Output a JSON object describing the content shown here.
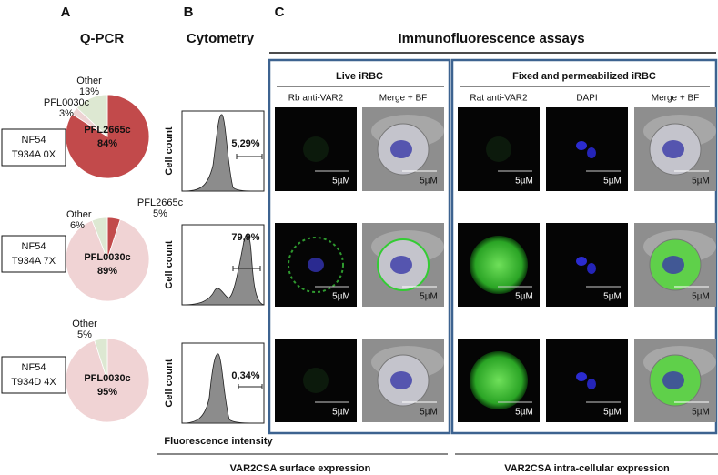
{
  "panels": {
    "a": "A",
    "b": "B",
    "c": "C"
  },
  "qpcr": {
    "title": "Q-PCR",
    "charts": [
      {
        "type": "pie",
        "strain": [
          "NF54",
          "T934A 0X"
        ],
        "categories": [
          "PFL2665c",
          "PFL0030c",
          "Other"
        ],
        "values": [
          84,
          3,
          13
        ],
        "value_labels": [
          "84%",
          "3%",
          "13%"
        ],
        "colors": [
          "#c24a4b",
          "#edd3d3",
          "#dde8d2"
        ]
      },
      {
        "type": "pie",
        "strain": [
          "NF54",
          "T934A 7X"
        ],
        "categories": [
          "PFL2665c",
          "PFL0030c",
          "Other"
        ],
        "values": [
          5,
          89,
          6
        ],
        "value_labels": [
          "5%",
          "89%",
          "6%"
        ],
        "colors": [
          "#c24a4b",
          "#f0d3d4",
          "#dde8d2"
        ]
      },
      {
        "type": "pie",
        "strain": [
          "NF54",
          "T934D 4X"
        ],
        "categories": [
          "PFL0030c",
          "Other"
        ],
        "values": [
          95,
          5
        ],
        "value_labels": [
          "95%",
          "5%"
        ],
        "colors": [
          "#f0d3d4",
          "#dde8d2"
        ]
      }
    ]
  },
  "cytometry": {
    "title": "Cytometry",
    "y_label": "Cell count",
    "x_label": "Fluorescence intensity",
    "gates": [
      {
        "value": 5.29,
        "label": "5,29%"
      },
      {
        "value": 79.9,
        "label": "79,9%"
      },
      {
        "value": 0.34,
        "label": "0,34%"
      }
    ]
  },
  "immunofluorescence": {
    "title": "Immunofluorescence assays",
    "scale_label": "5µM",
    "live": {
      "title": "Live iRBC",
      "columns": [
        "Rb anti-VAR2",
        "Merge + BF"
      ]
    },
    "fixed": {
      "title": "Fixed and permeabilized iRBC",
      "columns": [
        "Rat anti-VAR2",
        "DAPI",
        "Merge + BF"
      ]
    }
  },
  "footer": {
    "surface": "VAR2CSA surface expression",
    "intracellular": "VAR2CSA intra-cellular expression"
  }
}
